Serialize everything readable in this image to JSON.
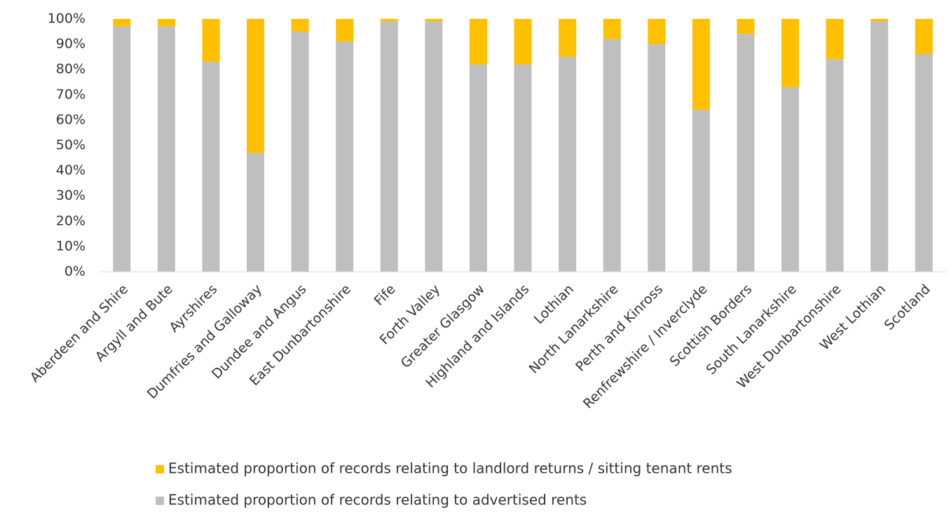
{
  "chart_data": {
    "type": "bar",
    "stacked": true,
    "categories": [
      "Aberdeen and Shire",
      "Argyll and Bute",
      "Ayrshires",
      "Dumfries and Galloway",
      "Dundee and Angus",
      "East Dunbartonshire",
      "Fife",
      "Forth Valley",
      "Greater Glasgow",
      "Highland and Islands",
      "Lothian",
      "North Lanarkshire",
      "Perth and Kinross",
      "Renfrewshire / Inverclyde",
      "Scottish Borders",
      "South Lanarkshire",
      "West Dunbartonshire",
      "West Lothian",
      "Scotland"
    ],
    "series": [
      {
        "name": "Estimated proportion of records relating to landlord returns / sitting tenant rents",
        "color": "#ffc000",
        "values": [
          3,
          3,
          17,
          53,
          5,
          9,
          1,
          1,
          18,
          18,
          15,
          8,
          10,
          36,
          6,
          27,
          16,
          1,
          14
        ]
      },
      {
        "name": "Estimated proportion of records relating to advertised rents",
        "color": "#bfbfbf",
        "values": [
          97,
          97,
          83,
          47,
          95,
          91,
          99,
          99,
          82,
          82,
          85,
          92,
          90,
          64,
          94,
          73,
          84,
          99,
          86
        ]
      }
    ],
    "ylim": [
      0,
      100
    ],
    "yticks": [
      {
        "value": 0,
        "label": "0%"
      },
      {
        "value": 10,
        "label": "10%"
      },
      {
        "value": 20,
        "label": "20%"
      },
      {
        "value": 30,
        "label": "30%"
      },
      {
        "value": 40,
        "label": "40%"
      },
      {
        "value": 50,
        "label": "50%"
      },
      {
        "value": 60,
        "label": "60%"
      },
      {
        "value": 70,
        "label": "70%"
      },
      {
        "value": 80,
        "label": "80%"
      },
      {
        "value": 90,
        "label": "90%"
      },
      {
        "value": 100,
        "label": "100%"
      }
    ],
    "grid": false
  }
}
